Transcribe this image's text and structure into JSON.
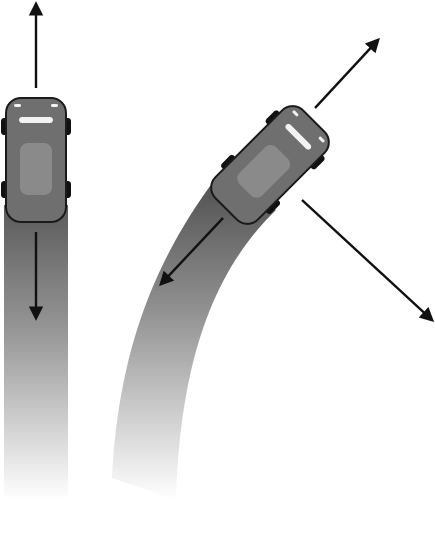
{
  "diagram": {
    "description_visible_text": "",
    "colors": {
      "background": "#ffffff",
      "arrow": "#111111",
      "car_body": "#6f6f6f",
      "car_roof": "#8a8a8a",
      "car_outline": "#1a1a1a",
      "tire": "#111111",
      "light": "#f2f2f2",
      "trail_dark": "#5a5a5a",
      "trail_light": "#ffffff"
    },
    "cars": [
      {
        "id": "straight-car",
        "motion": "straight"
      },
      {
        "id": "turning-car",
        "motion": "curved"
      }
    ],
    "arrows": [
      {
        "id": "straight-forward",
        "car": "straight-car",
        "meaning": "forward"
      },
      {
        "id": "straight-backward",
        "car": "straight-car",
        "meaning": "backward"
      },
      {
        "id": "turning-forward",
        "car": "turning-car",
        "meaning": "forward"
      },
      {
        "id": "turning-backward",
        "car": "turning-car",
        "meaning": "backward"
      },
      {
        "id": "turning-outward",
        "car": "turning-car",
        "meaning": "outward"
      }
    ]
  }
}
